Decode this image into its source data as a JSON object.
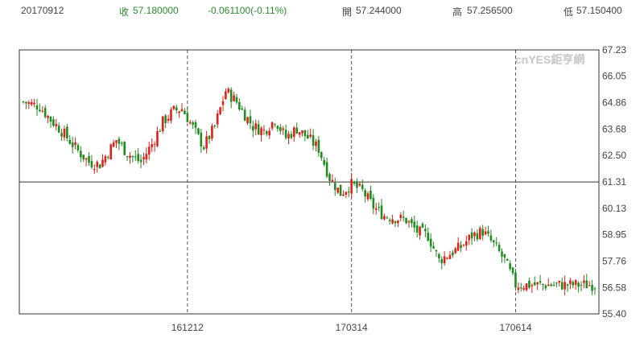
{
  "header": {
    "date": "20170912",
    "close_label": "收",
    "close_value": "57.180000",
    "change": "-0.061100(-0.11%)",
    "open_label": "開",
    "open_value": "57.244000",
    "high_label": "高",
    "high_value": "57.256500",
    "low_label": "低",
    "low_value": "57.150400"
  },
  "watermark": "cnYES鉅亨網",
  "colors": {
    "up": "#e0201b",
    "down": "#1e8c1e",
    "frame": "#333333",
    "grid": "#555555"
  },
  "chart_data": {
    "type": "candlestick",
    "y_ticks": [
      "67.23",
      "66.05",
      "64.86",
      "63.68",
      "62.50",
      "61.31",
      "60.13",
      "58.95",
      "57.76",
      "56.58",
      "55.40"
    ],
    "ylim": [
      55.4,
      67.23
    ],
    "reference_line": 61.31,
    "x_ticks": [
      "161212",
      "170314",
      "170614"
    ],
    "grid": "vertical dashed at x ticks",
    "n_points": 210,
    "x_tick_index": [
      60,
      120,
      180
    ],
    "close_path": [
      [
        0,
        64.9
      ],
      [
        6,
        64.7
      ],
      [
        10,
        64.1
      ],
      [
        14,
        63.6
      ],
      [
        20,
        62.7
      ],
      [
        24,
        62.2
      ],
      [
        28,
        62.1
      ],
      [
        34,
        63.2
      ],
      [
        38,
        62.6
      ],
      [
        43,
        62.2
      ],
      [
        47,
        63.0
      ],
      [
        51,
        64.0
      ],
      [
        55,
        64.5
      ],
      [
        58,
        64.6
      ],
      [
        60,
        64.2
      ],
      [
        64,
        63.3
      ],
      [
        66,
        62.9
      ],
      [
        70,
        63.8
      ],
      [
        74,
        65.4
      ],
      [
        78,
        64.9
      ],
      [
        80,
        64.5
      ],
      [
        84,
        63.8
      ],
      [
        88,
        63.6
      ],
      [
        92,
        64.1
      ],
      [
        96,
        63.3
      ],
      [
        100,
        63.7
      ],
      [
        104,
        63.3
      ],
      [
        108,
        62.8
      ],
      [
        112,
        61.5
      ],
      [
        116,
        60.8
      ],
      [
        120,
        61.2
      ],
      [
        124,
        60.9
      ],
      [
        128,
        60.2
      ],
      [
        132,
        59.8
      ],
      [
        136,
        59.7
      ],
      [
        140,
        59.6
      ],
      [
        144,
        59.1
      ],
      [
        148,
        58.9
      ],
      [
        152,
        57.8
      ],
      [
        156,
        58.1
      ],
      [
        160,
        58.4
      ],
      [
        164,
        58.9
      ],
      [
        168,
        59.1
      ],
      [
        172,
        58.5
      ],
      [
        176,
        57.8
      ],
      [
        180,
        56.7
      ]
    ]
  }
}
